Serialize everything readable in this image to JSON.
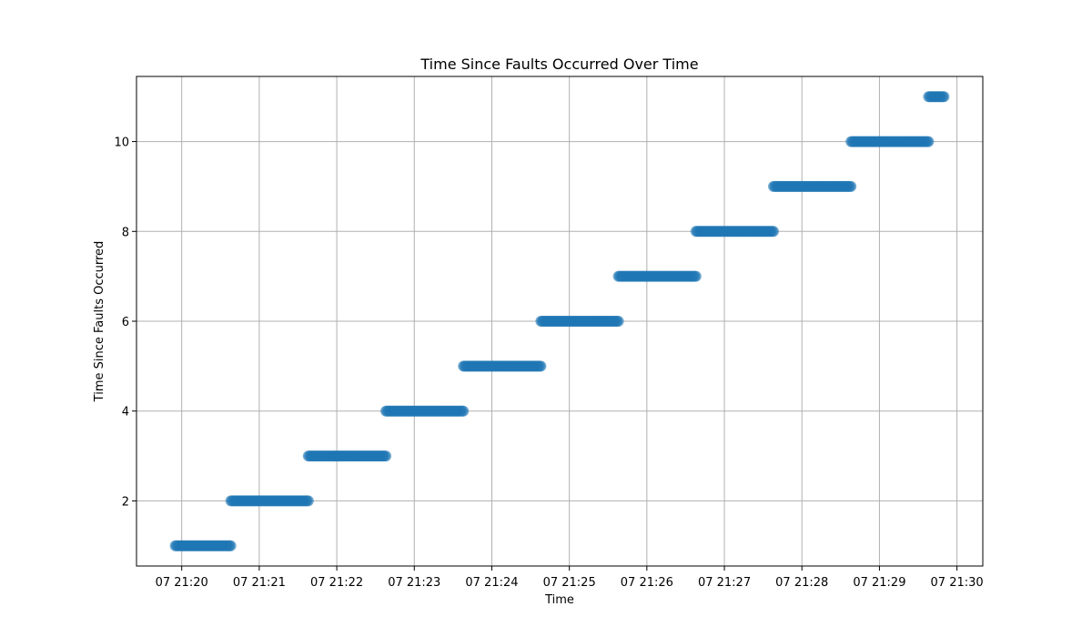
{
  "chart_data": {
    "type": "scatter",
    "title": "Time Since Faults Occurred Over Time",
    "xlabel": "Time",
    "ylabel": "Time Since Faults Occurred",
    "grid": true,
    "marker_color": "#1f77b4",
    "x_tick_labels": [
      "07 21:20",
      "07 21:21",
      "07 21:22",
      "07 21:23",
      "07 21:24",
      "07 21:25",
      "07 21:26",
      "07 21:27",
      "07 21:28",
      "07 21:29",
      "07 21:30"
    ],
    "x_tick_values": [
      "21:20",
      "21:21",
      "21:22",
      "21:23",
      "21:24",
      "21:25",
      "21:26",
      "21:27",
      "21:28",
      "21:29",
      "21:30"
    ],
    "y_ticks": [
      2,
      4,
      6,
      8,
      10
    ],
    "xlim": [
      "21:19:25",
      "21:30:20"
    ],
    "ylim": [
      0.55,
      11.45
    ],
    "series": [
      {
        "y": 1,
        "x_start": "21:19:55",
        "x_end": "21:20:38"
      },
      {
        "y": 2,
        "x_start": "21:20:38",
        "x_end": "21:21:38"
      },
      {
        "y": 3,
        "x_start": "21:21:38",
        "x_end": "21:22:38"
      },
      {
        "y": 4,
        "x_start": "21:22:38",
        "x_end": "21:23:38"
      },
      {
        "y": 5,
        "x_start": "21:23:38",
        "x_end": "21:24:38"
      },
      {
        "y": 6,
        "x_start": "21:24:38",
        "x_end": "21:25:38"
      },
      {
        "y": 7,
        "x_start": "21:25:38",
        "x_end": "21:26:38"
      },
      {
        "y": 8,
        "x_start": "21:26:38",
        "x_end": "21:27:38"
      },
      {
        "y": 9,
        "x_start": "21:27:38",
        "x_end": "21:28:38"
      },
      {
        "y": 10,
        "x_start": "21:28:38",
        "x_end": "21:29:38"
      },
      {
        "y": 11,
        "x_start": "21:29:38",
        "x_end": "21:29:50"
      }
    ]
  }
}
